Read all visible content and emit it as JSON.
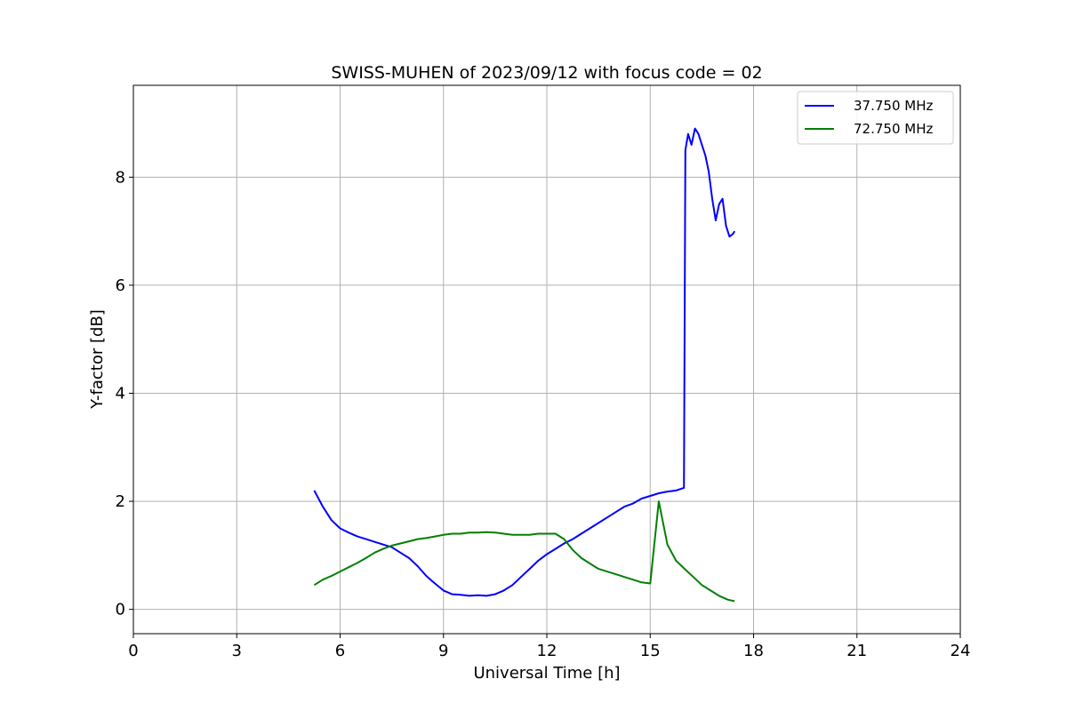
{
  "chart_data": {
    "type": "line",
    "title": "SWISS-MUHEN of 2023/09/12 with focus code = 02",
    "xlabel": "Universal Time [h]",
    "ylabel": "Y-factor [dB]",
    "xlim": [
      0,
      24
    ],
    "ylim": [
      -0.45,
      9.7
    ],
    "xticks": [
      0,
      3,
      6,
      9,
      12,
      15,
      18,
      21,
      24
    ],
    "yticks": [
      0,
      2,
      4,
      6,
      8
    ],
    "grid": true,
    "legend_position": "top-right",
    "series": [
      {
        "name": "37.750 MHz",
        "color": "#0000ff",
        "x": [
          5.25,
          5.5,
          5.75,
          6.0,
          6.25,
          6.5,
          6.75,
          7.0,
          7.25,
          7.5,
          7.75,
          8.0,
          8.25,
          8.5,
          8.75,
          9.0,
          9.25,
          9.5,
          9.75,
          10.0,
          10.25,
          10.5,
          10.75,
          11.0,
          11.25,
          11.5,
          11.75,
          12.0,
          12.25,
          12.5,
          12.75,
          13.0,
          13.25,
          13.5,
          13.75,
          14.0,
          14.25,
          14.5,
          14.75,
          15.0,
          15.25,
          15.5,
          15.75,
          15.98,
          16.02,
          16.1,
          16.2,
          16.3,
          16.4,
          16.5,
          16.6,
          16.7,
          16.8,
          16.9,
          17.0,
          17.1,
          17.2,
          17.3,
          17.4,
          17.45
        ],
        "y": [
          2.2,
          1.9,
          1.65,
          1.5,
          1.42,
          1.35,
          1.3,
          1.25,
          1.2,
          1.15,
          1.05,
          0.95,
          0.8,
          0.62,
          0.48,
          0.35,
          0.28,
          0.27,
          0.25,
          0.26,
          0.25,
          0.28,
          0.35,
          0.45,
          0.6,
          0.75,
          0.9,
          1.02,
          1.12,
          1.22,
          1.3,
          1.4,
          1.5,
          1.6,
          1.7,
          1.8,
          1.9,
          1.96,
          2.05,
          2.1,
          2.15,
          2.18,
          2.2,
          2.25,
          8.5,
          8.8,
          8.6,
          8.9,
          8.8,
          8.6,
          8.4,
          8.1,
          7.6,
          7.2,
          7.5,
          7.6,
          7.1,
          6.9,
          6.95,
          7.0
        ]
      },
      {
        "name": "72.750 MHz",
        "color": "#008000",
        "x": [
          5.25,
          5.5,
          5.75,
          6.0,
          6.25,
          6.5,
          6.75,
          7.0,
          7.25,
          7.5,
          7.75,
          8.0,
          8.25,
          8.5,
          8.75,
          9.0,
          9.25,
          9.5,
          9.75,
          10.0,
          10.25,
          10.5,
          10.75,
          11.0,
          11.25,
          11.5,
          11.75,
          12.0,
          12.25,
          12.5,
          12.75,
          13.0,
          13.25,
          13.5,
          13.75,
          14.0,
          14.25,
          14.5,
          14.75,
          15.0,
          15.25,
          15.5,
          15.75,
          16.0,
          16.25,
          16.5,
          16.75,
          17.0,
          17.25,
          17.45
        ],
        "y": [
          0.45,
          0.55,
          0.62,
          0.7,
          0.78,
          0.86,
          0.95,
          1.05,
          1.12,
          1.18,
          1.22,
          1.26,
          1.3,
          1.32,
          1.35,
          1.38,
          1.4,
          1.4,
          1.42,
          1.42,
          1.43,
          1.42,
          1.4,
          1.38,
          1.38,
          1.38,
          1.4,
          1.4,
          1.4,
          1.3,
          1.1,
          0.95,
          0.85,
          0.75,
          0.7,
          0.65,
          0.6,
          0.55,
          0.5,
          0.48,
          2.0,
          1.2,
          0.9,
          0.75,
          0.6,
          0.45,
          0.35,
          0.25,
          0.18,
          0.15
        ]
      }
    ]
  }
}
